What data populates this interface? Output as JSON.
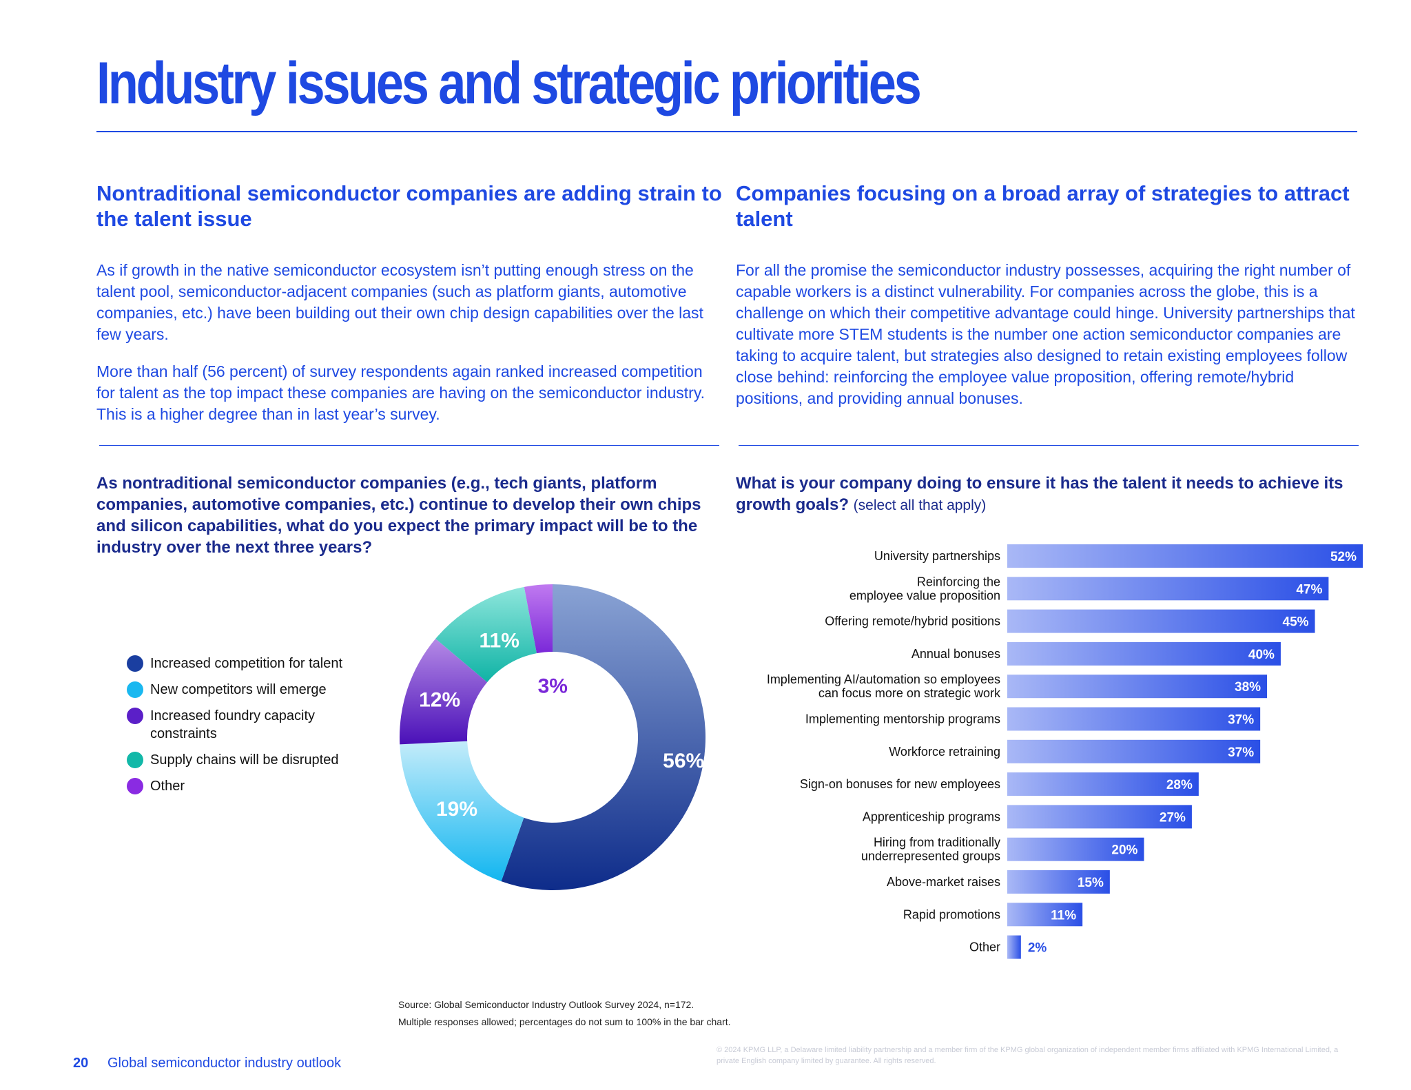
{
  "page": {
    "title": "Industry issues and strategic priorities"
  },
  "left_section": {
    "heading": "Nontraditional semiconductor companies are adding strain to the talent issue",
    "para1": "As if growth in the native semiconductor ecosystem isn’t putting enough stress on the talent pool, semiconductor-adjacent companies (such as platform giants, automotive companies, etc.) have been building out their own chip design capabilities over the last few years.",
    "para2": "More than half (56 percent) of survey respondents again ranked increased competition for talent as the top impact these companies are having on the semiconductor industry. This is a higher degree than in last year’s survey."
  },
  "right_section": {
    "heading": "Companies focusing on a broad array of strategies to attract talent",
    "para1": "For all the promise the semiconductor industry possesses, acquiring the right number of capable workers is a distinct vulnerability. For companies across the globe, this is a challenge on which their competitive advantage could hinge. University partnerships that cultivate more STEM students is the number one action semiconductor companies are taking to acquire talent, but strategies also designed to retain existing employees follow close behind: reinforcing the employee value proposition, offering remote/hybrid positions, and providing annual bonuses."
  },
  "left_question": "As nontraditional semiconductor companies (e.g., tech giants, platform companies, automotive companies, etc.) continue to develop their own chips and silicon capabilities, what do you expect the primary impact will be to the industry over the next three years?",
  "right_question": {
    "text": "What is your company doing to ensure it has the talent it needs to achieve its growth goals?",
    "note": "(select all that apply)"
  },
  "chart_data": [
    {
      "type": "pie",
      "donut": true,
      "categories": [
        "Increased competition for talent",
        "New competitors will emerge",
        "Increased foundry capacity constraints",
        "Supply chains will be disrupted",
        "Other"
      ],
      "values": [
        56,
        19,
        12,
        11,
        3
      ],
      "data_labels": [
        "56%",
        "19%",
        "12%",
        "11%",
        "3%"
      ],
      "colors": [
        "#1a3ea0",
        "#1ab8f0",
        "#5b1fc8",
        "#12b8a8",
        "#8a2be2"
      ],
      "legend_position": "left"
    },
    {
      "type": "bar",
      "orientation": "horizontal",
      "categories": [
        "University partnerships",
        "Reinforcing the employee value proposition",
        "Offering remote/hybrid positions",
        "Annual bonuses",
        "Implementing AI/automation so employees can focus more on strategic work",
        "Implementing mentorship programs",
        "Workforce retraining",
        "Sign-on bonuses for new employees",
        "Apprenticeship programs",
        "Hiring from traditionally underrepresented groups",
        "Above-market raises",
        "Rapid promotions",
        "Other"
      ],
      "category_lines": [
        [
          "University partnerships"
        ],
        [
          "Reinforcing the",
          "employee value proposition"
        ],
        [
          "Offering remote/hybrid positions"
        ],
        [
          "Annual bonuses"
        ],
        [
          "Implementing AI/automation so employees",
          "can focus more on strategic work"
        ],
        [
          "Implementing mentorship programs"
        ],
        [
          "Workforce retraining"
        ],
        [
          "Sign-on bonuses for new employees"
        ],
        [
          "Apprenticeship programs"
        ],
        [
          "Hiring from traditionally",
          "underrepresented groups"
        ],
        [
          "Above-market raises"
        ],
        [
          "Rapid promotions"
        ],
        [
          "Other"
        ]
      ],
      "values": [
        52,
        47,
        45,
        40,
        38,
        37,
        37,
        28,
        27,
        20,
        15,
        11,
        2
      ],
      "data_labels": [
        "52%",
        "47%",
        "45%",
        "40%",
        "38%",
        "37%",
        "37%",
        "28%",
        "27%",
        "20%",
        "15%",
        "11%",
        "2%"
      ],
      "xlim": [
        0,
        52
      ]
    }
  ],
  "source": {
    "line1": "Source: Global Semiconductor Industry Outlook Survey 2024, n=172.",
    "line2": "Multiple responses allowed; percentages do not sum to 100% in the bar chart."
  },
  "footer": {
    "page_number": "20",
    "publication": "Global semiconductor industry outlook",
    "copyright": "© 2024 KPMG LLP, a Delaware limited liability partnership and a member firm of the KPMG global organization of independent member firms affiliated with KPMG International Limited, a private English company limited by guarantee. All rights reserved."
  }
}
